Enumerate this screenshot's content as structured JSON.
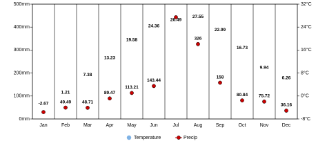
{
  "chart_data": {
    "type": "climate",
    "categories": [
      "Jan",
      "Feb",
      "Mar",
      "Apr",
      "May",
      "Jun",
      "Jul",
      "Aug",
      "Sep",
      "Oct",
      "Nov",
      "Dec"
    ],
    "series": [
      {
        "name": "Temperature",
        "color": "#7fb2e5",
        "axis": "y2",
        "values": [
          -2.67,
          1.21,
          7.38,
          13.23,
          19.58,
          24.36,
          26.49,
          27.55,
          22.99,
          16.73,
          9.94,
          6.26
        ]
      },
      {
        "name": "Precip",
        "color": "#cc0000",
        "values": [
          30,
          49.49,
          48.71,
          89.47,
          113.21,
          143.44,
          443,
          326,
          158,
          80.84,
          75.72,
          36.16
        ],
        "value_labels": [
          null,
          "49.49",
          "48.71",
          "89.47",
          "113.21",
          "143.44",
          null,
          "326",
          "158",
          "80.84",
          "75.72",
          "36.16"
        ]
      }
    ],
    "ylim": [
      0,
      500
    ],
    "yticks": [
      {
        "value": 0,
        "label": "0mm"
      },
      {
        "value": 100,
        "label": "100mm"
      },
      {
        "value": 200,
        "label": "200mm"
      },
      {
        "value": 300,
        "label": "300mm"
      },
      {
        "value": 400,
        "label": "400mm"
      },
      {
        "value": 500,
        "label": "500mm"
      }
    ],
    "y2lim": [
      -8,
      32
    ],
    "y2ticks": [
      {
        "value": -8,
        "label": "-8°C"
      },
      {
        "value": 0,
        "label": "0°C"
      },
      {
        "value": 8,
        "label": "8°C"
      },
      {
        "value": 16,
        "label": "16°C"
      },
      {
        "value": 24,
        "label": "24°C"
      },
      {
        "value": 32,
        "label": "32°C"
      }
    ]
  }
}
